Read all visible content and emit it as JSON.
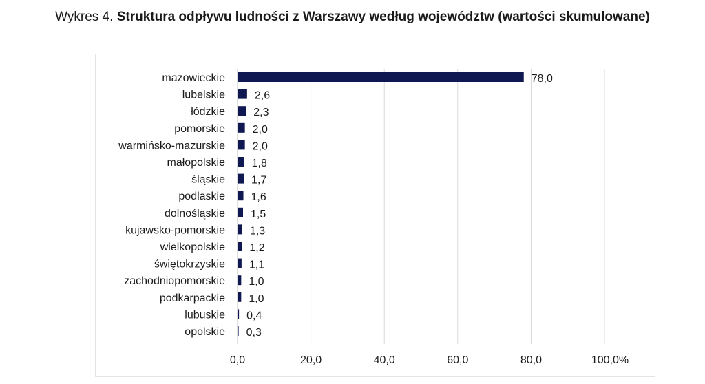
{
  "title": {
    "prefix": "Wykres 4.",
    "main": "Struktura odpływu ludności z Warszawy według województw (wartości skumulowane)"
  },
  "chart_data": {
    "type": "bar",
    "orientation": "horizontal",
    "categories": [
      "mazowieckie",
      "lubelskie",
      "łódzkie",
      "pomorskie",
      "warmińsko-mazurskie",
      "małopolskie",
      "śląskie",
      "podlaskie",
      "dolnośląskie",
      "kujawsko-pomorskie",
      "wielkopolskie",
      "świętokrzyskie",
      "zachodniopomorskie",
      "podkarpackie",
      "lubuskie",
      "opolskie"
    ],
    "values": [
      78.0,
      2.6,
      2.3,
      2.0,
      2.0,
      1.8,
      1.7,
      1.6,
      1.5,
      1.3,
      1.2,
      1.1,
      1.0,
      1.0,
      0.4,
      0.3
    ],
    "value_labels": [
      "78,0",
      "2,6",
      "2,3",
      "2,0",
      "2,0",
      "1,8",
      "1,7",
      "1,6",
      "1,5",
      "1,3",
      "1,2",
      "1,1",
      "1,0",
      "1,0",
      "0,4",
      "0,3"
    ],
    "xlim": [
      0,
      100
    ],
    "x_ticks": [
      0,
      20,
      40,
      60,
      80,
      100
    ],
    "x_tick_labels": [
      "0,0",
      "20,0",
      "40,0",
      "60,0",
      "80,0",
      "100,0%"
    ],
    "grid": true,
    "legend": "none",
    "bar_color": "#0f1850",
    "grid_color": "#d9d9d9"
  }
}
